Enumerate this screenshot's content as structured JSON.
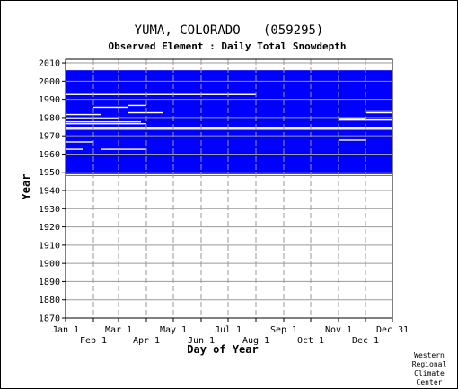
{
  "chart_data": {
    "type": "heatmap",
    "title": "YUMA, COLORADO   (059295)",
    "subtitle": "Observed Element : Daily Total Snowdepth",
    "xlabel": "Day of Year",
    "ylabel": "Year",
    "credit": [
      "Western",
      "Regional",
      "Climate",
      "Center"
    ],
    "ylim": [
      1870,
      2012
    ],
    "xlim_day_of_year": [
      1,
      365
    ],
    "y_ticks": [
      1870,
      1880,
      1890,
      1900,
      1910,
      1920,
      1930,
      1940,
      1950,
      1960,
      1970,
      1980,
      1990,
      2000,
      2010
    ],
    "x_ticks_top_row": [
      "Jan 1",
      "Mar 1",
      "May 1",
      "Jul 1",
      "Sep 1",
      "Nov 1",
      "Dec 31"
    ],
    "x_ticks_top_days": [
      1,
      60,
      121,
      182,
      244,
      305,
      365
    ],
    "x_ticks_bottom_row": [
      "Feb 1",
      "Apr 1",
      "Jun 1",
      "Aug 1",
      "Oct 1",
      "Dec 1"
    ],
    "x_ticks_bottom_days": [
      32,
      91,
      152,
      213,
      274,
      335
    ],
    "grid": true,
    "colors": {
      "data": "#0000ff",
      "background": "#ffffff",
      "grid": "#999999"
    },
    "period_of_record": {
      "start_year": 1948,
      "end_year": 2005
    },
    "missing_full_years": [
      1974
    ],
    "missing_segments": [
      {
        "year": 1948,
        "start_day": 1,
        "end_day": 365
      },
      {
        "year": 1962,
        "start_day": 1,
        "end_day": 20
      },
      {
        "year": 1962,
        "start_day": 41,
        "end_day": 91
      },
      {
        "year": 1973,
        "start_day": 1,
        "end_day": 365
      },
      {
        "year": 1974,
        "start_day": 1,
        "end_day": 365
      },
      {
        "year": 1977,
        "start_day": 1,
        "end_day": 85
      },
      {
        "year": 1979,
        "start_day": 1,
        "end_day": 60
      },
      {
        "year": 1979,
        "start_day": 305,
        "end_day": 335
      },
      {
        "year": 1981,
        "start_day": 1,
        "end_day": 40
      },
      {
        "year": 1982,
        "start_day": 70,
        "end_day": 110
      },
      {
        "year": 1982,
        "start_day": 335,
        "end_day": 365
      },
      {
        "year": 1983,
        "start_day": 335,
        "end_day": 365
      },
      {
        "year": 1985,
        "start_day": 32,
        "end_day": 70
      },
      {
        "year": 1986,
        "start_day": 70,
        "end_day": 91
      },
      {
        "year": 1992,
        "start_day": 1,
        "end_day": 213
      },
      {
        "year": 1967,
        "start_day": 305,
        "end_day": 335
      },
      {
        "year": 1966,
        "start_day": 1,
        "end_day": 32
      },
      {
        "year": 1978,
        "start_day": 305,
        "end_day": 365
      },
      {
        "year": 1976,
        "start_day": 1,
        "end_day": 91
      }
    ]
  }
}
